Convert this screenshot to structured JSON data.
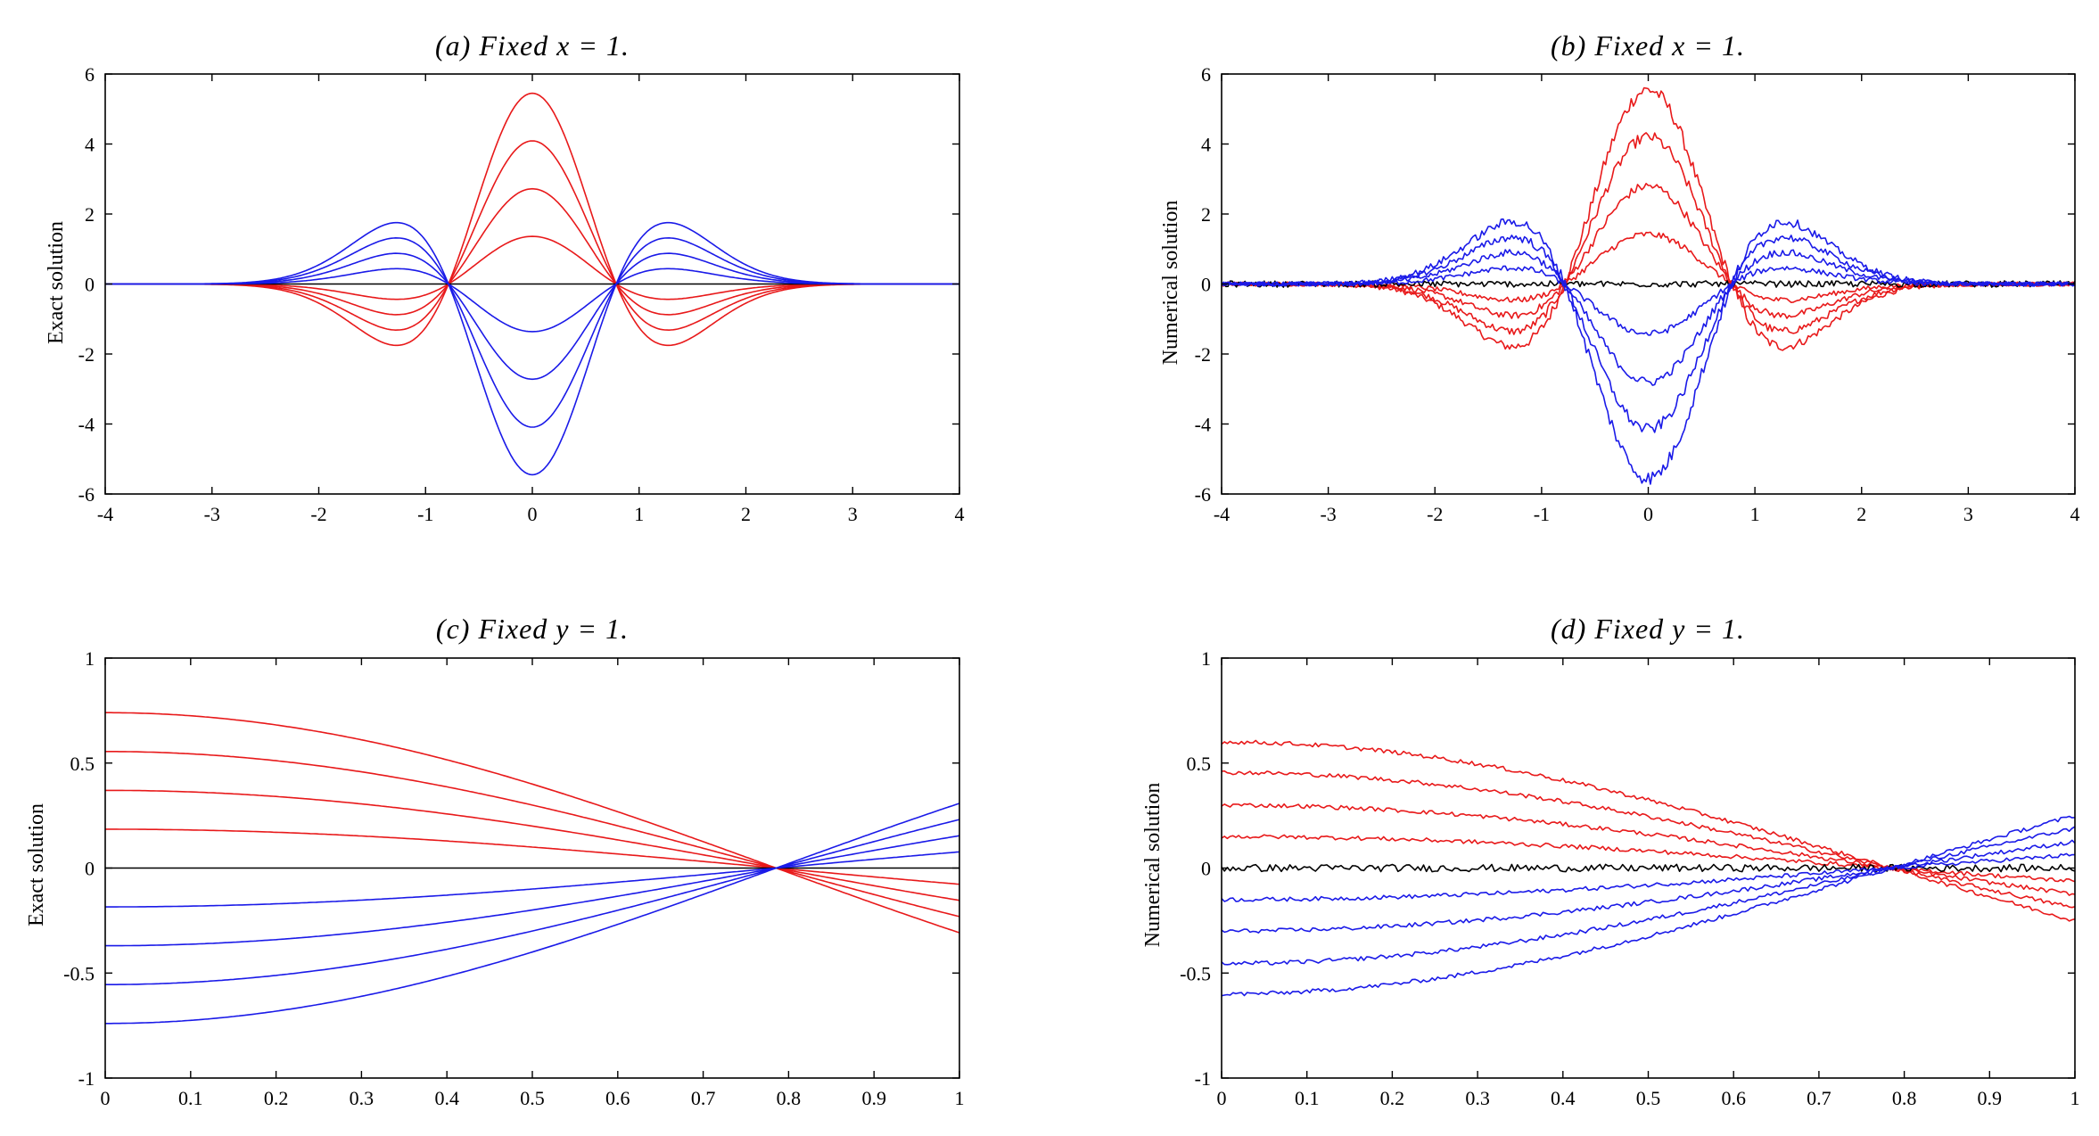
{
  "chart_data": [
    {
      "id": "a",
      "type": "line",
      "title": "(a)  Fixed  x = 1.",
      "xlabel": "",
      "ylabel": "Exact solution",
      "xlim": [
        -4,
        4
      ],
      "ylim": [
        -6,
        6
      ],
      "xticks": [
        -4,
        -3,
        -2,
        -1,
        0,
        1,
        2,
        3,
        4
      ],
      "yticks": [
        -6,
        -4,
        -2,
        0,
        2,
        4,
        6
      ],
      "xtick_labels": [
        "-4",
        "-3",
        "-2",
        "-1",
        "0",
        "1",
        "2",
        "3",
        "4"
      ],
      "ytick_labels": [
        "-6",
        "-4",
        "-2",
        "0",
        "2",
        "4",
        "6"
      ],
      "model": "gaussian_y",
      "noisy": false,
      "grid": false,
      "series_colors": {
        "positive": "#e8191a",
        "negative": "#1a1ae8",
        "zero": "#000000"
      },
      "peak_values": [
        5.45,
        4.09,
        2.72,
        1.36,
        0,
        -1.36,
        -2.72,
        -4.09,
        -5.45
      ]
    },
    {
      "id": "b",
      "type": "line",
      "title": "(b)  Fixed  x = 1.",
      "xlabel": "",
      "ylabel": "Numerical solution",
      "xlim": [
        -4,
        4
      ],
      "ylim": [
        -6,
        6
      ],
      "xticks": [
        -4,
        -3,
        -2,
        -1,
        0,
        1,
        2,
        3,
        4
      ],
      "yticks": [
        -6,
        -4,
        -2,
        0,
        2,
        4,
        6
      ],
      "xtick_labels": [
        "-4",
        "-3",
        "-2",
        "-1",
        "0",
        "1",
        "2",
        "3",
        "4"
      ],
      "ytick_labels": [
        "-6",
        "-4",
        "-2",
        "0",
        "2",
        "4",
        "6"
      ],
      "model": "gaussian_y",
      "noisy": true,
      "grid": false,
      "series_colors": {
        "positive": "#e8191a",
        "negative": "#1a1ae8",
        "zero": "#000000"
      },
      "peak_values": [
        5.55,
        4.2,
        2.8,
        1.42,
        0,
        -1.42,
        -2.8,
        -4.15,
        -5.55
      ]
    },
    {
      "id": "c",
      "type": "line",
      "title": "(c)  Fixed  y = 1.",
      "xlabel": "",
      "ylabel": "Exact solution",
      "xlim": [
        0,
        1
      ],
      "ylim": [
        -1,
        1
      ],
      "xticks": [
        0,
        0.1,
        0.2,
        0.3,
        0.4,
        0.5,
        0.6,
        0.7,
        0.8,
        0.9,
        1
      ],
      "yticks": [
        -1,
        -0.5,
        0,
        0.5,
        1
      ],
      "xtick_labels": [
        "0",
        "0.1",
        "0.2",
        "0.3",
        "0.4",
        "0.5",
        "0.6",
        "0.7",
        "0.8",
        "0.9",
        "1"
      ],
      "ytick_labels": [
        "-1",
        "-0.5",
        "0",
        "0.5",
        "1"
      ],
      "model": "cosine_x",
      "noisy": false,
      "grid": false,
      "series_colors": {
        "positive": "#e8191a",
        "negative": "#1a1ae8",
        "zero": "#000000"
      },
      "values_at_x0": [
        0.74,
        0.555,
        0.37,
        0.185,
        0,
        -0.185,
        -0.37,
        -0.555,
        -0.74
      ]
    },
    {
      "id": "d",
      "type": "line",
      "title": "(d)  Fixed  y = 1.",
      "xlabel": "",
      "ylabel": "Numerical solution",
      "xlim": [
        0,
        1
      ],
      "ylim": [
        -1,
        1
      ],
      "xticks": [
        0,
        0.1,
        0.2,
        0.3,
        0.4,
        0.5,
        0.6,
        0.7,
        0.8,
        0.9,
        1
      ],
      "yticks": [
        -1,
        -0.5,
        0,
        0.5,
        1
      ],
      "xtick_labels": [
        "0",
        "0.1",
        "0.2",
        "0.3",
        "0.4",
        "0.5",
        "0.6",
        "0.7",
        "0.8",
        "0.9",
        "1"
      ],
      "ytick_labels": [
        "-1",
        "-0.5",
        "0",
        "0.5",
        "1"
      ],
      "model": "cosine_x",
      "noisy": true,
      "grid": false,
      "series_colors": {
        "positive": "#e8191a",
        "negative": "#1a1ae8",
        "zero": "#000000"
      },
      "values_at_x0": [
        0.6,
        0.455,
        0.3,
        0.15,
        0,
        -0.15,
        -0.3,
        -0.455,
        -0.6
      ]
    }
  ]
}
